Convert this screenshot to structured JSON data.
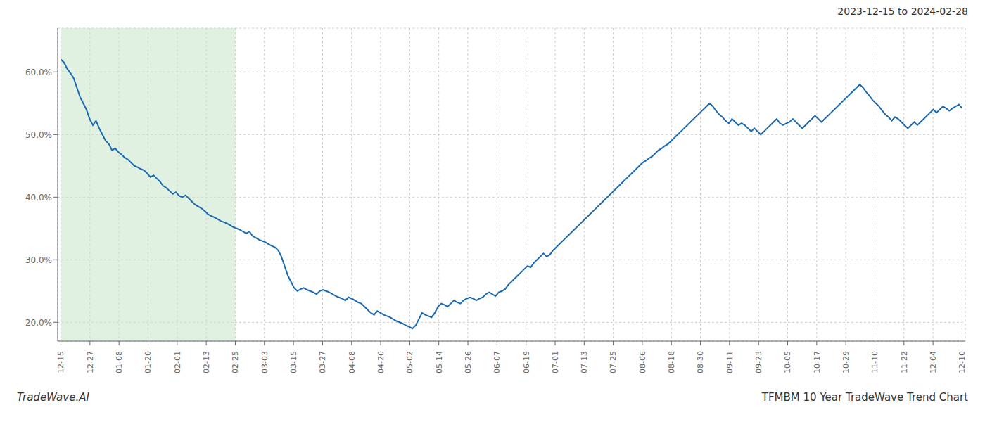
{
  "chart_data": {
    "type": "line",
    "title": "2023-12-15 to 2024-02-28",
    "annotations": [
      "TradeWave.AI",
      "TFMBM 10 Year TradeWave Trend Chart"
    ],
    "color": "#1b6ab0",
    "grid": true,
    "xlim": [
      -1,
      283
    ],
    "xticks": [
      {
        "value": 0,
        "label": "12-15"
      },
      {
        "value": 9.0967741935,
        "label": "12-27"
      },
      {
        "value": 18.1935483871,
        "label": "01-08"
      },
      {
        "value": 27.2903225806,
        "label": "01-20"
      },
      {
        "value": 36.3870967742,
        "label": "02-01"
      },
      {
        "value": 45.4838709677,
        "label": "02-13"
      },
      {
        "value": 54.5806451613,
        "label": "02-25"
      },
      {
        "value": 63.6774193548,
        "label": "03-03"
      },
      {
        "value": 72.7741935484,
        "label": "03-15"
      },
      {
        "value": 81.8709677419,
        "label": "03-27"
      },
      {
        "value": 90.9677419355,
        "label": "04-08"
      },
      {
        "value": 100.064516129,
        "label": "04-20"
      },
      {
        "value": 109.1612903226,
        "label": "05-02"
      },
      {
        "value": 118.2580645161,
        "label": "05-14"
      },
      {
        "value": 127.3548387097,
        "label": "05-26"
      },
      {
        "value": 136.4516129032,
        "label": "06-07"
      },
      {
        "value": 145.5483870968,
        "label": "06-19"
      },
      {
        "value": 154.6451612903,
        "label": "07-01"
      },
      {
        "value": 163.7419354839,
        "label": "07-13"
      },
      {
        "value": 172.8387096774,
        "label": "07-25"
      },
      {
        "value": 181.935483871,
        "label": "08-06"
      },
      {
        "value": 191.0322580645,
        "label": "08-18"
      },
      {
        "value": 200.1290322581,
        "label": "08-30"
      },
      {
        "value": 209.2258064516,
        "label": "09-11"
      },
      {
        "value": 218.3225806452,
        "label": "09-23"
      },
      {
        "value": 227.4193548387,
        "label": "10-05"
      },
      {
        "value": 236.5161290323,
        "label": "10-17"
      },
      {
        "value": 245.6129032258,
        "label": "10-29"
      },
      {
        "value": 254.7096774194,
        "label": "11-10"
      },
      {
        "value": 263.8064516129,
        "label": "11-22"
      },
      {
        "value": 272.9032258065,
        "label": "12-04"
      },
      {
        "value": 282,
        "label": "12-10"
      }
    ],
    "ylim": [
      17,
      67
    ],
    "yticks": [
      {
        "value": 20.0,
        "label": "20.0%"
      },
      {
        "value": 30.0,
        "label": "30.0%"
      },
      {
        "value": 40.0,
        "label": "40.0%"
      },
      {
        "value": 50.0,
        "label": "50.0%"
      },
      {
        "value": 60.0,
        "label": "60.0%"
      }
    ],
    "highlight": {
      "x": [
        0,
        54.5806451613
      ],
      "color": "#c8e6c9"
    },
    "x": [
      0,
      1,
      2,
      3,
      4,
      5,
      6,
      7,
      8,
      9,
      10,
      11,
      12,
      13,
      14,
      15,
      16,
      17,
      18,
      19,
      20,
      21,
      22,
      23,
      24,
      25,
      26,
      27,
      28,
      29,
      30,
      31,
      32,
      33,
      34,
      35,
      36,
      37,
      38,
      39,
      40,
      41,
      42,
      43,
      44,
      45,
      46,
      47,
      48,
      49,
      50,
      51,
      52,
      53,
      54,
      55,
      56,
      57,
      58,
      59,
      60,
      61,
      62,
      63,
      64,
      65,
      66,
      67,
      68,
      69,
      70,
      71,
      72,
      73,
      74,
      75,
      76,
      77,
      78,
      79,
      80,
      81,
      82,
      83,
      84,
      85,
      86,
      87,
      88,
      89,
      90,
      91,
      92,
      93,
      94,
      95,
      96,
      97,
      98,
      99,
      100,
      101,
      102,
      103,
      104,
      105,
      106,
      107,
      108,
      109,
      110,
      111,
      112,
      113,
      114,
      115,
      116,
      117,
      118,
      119,
      120,
      121,
      122,
      123,
      124,
      125,
      126,
      127,
      128,
      129,
      130,
      131,
      132,
      133,
      134,
      135,
      136,
      137,
      138,
      139,
      140,
      141,
      142,
      143,
      144,
      145,
      146,
      147,
      148,
      149,
      150,
      151,
      152,
      153,
      154,
      155,
      156,
      157,
      158,
      159,
      160,
      161,
      162,
      163,
      164,
      165,
      166,
      167,
      168,
      169,
      170,
      171,
      172,
      173,
      174,
      175,
      176,
      177,
      178,
      179,
      180,
      181,
      182,
      183,
      184,
      185,
      186,
      187,
      188,
      189,
      190,
      191,
      192,
      193,
      194,
      195,
      196,
      197,
      198,
      199,
      200,
      201,
      202,
      203,
      204,
      205,
      206,
      207,
      208,
      209,
      210,
      211,
      212,
      213,
      214,
      215,
      216,
      217,
      218,
      219,
      220,
      221,
      222,
      223,
      224,
      225,
      226,
      227,
      228,
      229,
      230,
      231,
      232,
      233,
      234,
      235,
      236,
      237,
      238,
      239,
      240,
      241,
      242,
      243,
      244,
      245,
      246,
      247,
      248,
      249,
      250,
      251,
      252,
      253,
      254,
      255,
      256,
      257,
      258,
      259,
      260,
      261,
      262,
      263,
      264,
      265,
      266,
      267,
      268,
      269,
      270,
      271,
      272,
      273,
      274,
      275,
      276,
      277,
      278,
      279,
      280,
      281,
      282
    ],
    "values": [
      62.0,
      61.5,
      60.5,
      59.8,
      59.0,
      57.5,
      56.0,
      55.0,
      54.0,
      52.5,
      51.5,
      52.2,
      51.0,
      50.0,
      49.0,
      48.5,
      47.5,
      47.8,
      47.2,
      46.8,
      46.3,
      46.0,
      45.5,
      45.0,
      44.8,
      44.5,
      44.3,
      43.8,
      43.2,
      43.5,
      43.0,
      42.5,
      41.8,
      41.5,
      41.0,
      40.5,
      40.8,
      40.2,
      40.0,
      40.3,
      39.8,
      39.3,
      38.8,
      38.5,
      38.2,
      37.8,
      37.3,
      37.0,
      36.8,
      36.5,
      36.2,
      36.0,
      35.8,
      35.5,
      35.2,
      35.0,
      34.8,
      34.5,
      34.2,
      34.5,
      33.8,
      33.5,
      33.2,
      33.0,
      32.8,
      32.5,
      32.2,
      32.0,
      31.5,
      30.5,
      29.0,
      27.5,
      26.5,
      25.5,
      25.0,
      25.3,
      25.5,
      25.2,
      25.0,
      24.8,
      24.5,
      25.0,
      25.2,
      25.0,
      24.8,
      24.5,
      24.2,
      24.0,
      23.8,
      23.5,
      24.0,
      23.8,
      23.5,
      23.2,
      23.0,
      22.5,
      22.0,
      21.5,
      21.2,
      21.8,
      21.5,
      21.2,
      21.0,
      20.8,
      20.5,
      20.2,
      20.0,
      19.8,
      19.5,
      19.3,
      19.0,
      19.5,
      20.5,
      21.5,
      21.2,
      21.0,
      20.8,
      21.5,
      22.5,
      23.0,
      22.8,
      22.5,
      23.0,
      23.5,
      23.2,
      23.0,
      23.5,
      23.8,
      24.0,
      23.8,
      23.5,
      23.8,
      24.0,
      24.5,
      24.8,
      24.5,
      24.2,
      24.8,
      25.0,
      25.3,
      26.0,
      26.5,
      27.0,
      27.5,
      28.0,
      28.5,
      29.0,
      28.8,
      29.5,
      30.0,
      30.5,
      31.0,
      30.5,
      30.8,
      31.5,
      32.0,
      32.5,
      33.0,
      33.5,
      34.0,
      34.5,
      35.0,
      35.5,
      36.0,
      36.5,
      37.0,
      37.5,
      38.0,
      38.5,
      39.0,
      39.5,
      40.0,
      40.5,
      41.0,
      41.5,
      42.0,
      42.5,
      43.0,
      43.5,
      44.0,
      44.5,
      45.0,
      45.5,
      45.8,
      46.2,
      46.5,
      47.0,
      47.5,
      47.8,
      48.2,
      48.5,
      49.0,
      49.5,
      50.0,
      50.5,
      51.0,
      51.5,
      52.0,
      52.5,
      53.0,
      53.5,
      54.0,
      54.5,
      55.0,
      54.5,
      53.8,
      53.2,
      52.8,
      52.2,
      51.8,
      52.5,
      52.0,
      51.5,
      51.8,
      51.5,
      51.0,
      50.5,
      51.0,
      50.5,
      50.0,
      50.5,
      51.0,
      51.5,
      52.0,
      52.5,
      51.8,
      51.5,
      51.8,
      52.0,
      52.5,
      52.0,
      51.5,
      51.0,
      51.5,
      52.0,
      52.5,
      53.0,
      52.5,
      52.0,
      52.5,
      53.0,
      53.5,
      54.0,
      54.5,
      55.0,
      55.5,
      56.0,
      56.5,
      57.0,
      57.5,
      58.0,
      57.5,
      56.8,
      56.2,
      55.5,
      55.0,
      54.5,
      53.8,
      53.2,
      52.8,
      52.2,
      52.8,
      52.5,
      52.0,
      51.5,
      51.0,
      51.5,
      52.0,
      51.5,
      52.0,
      52.5,
      53.0,
      53.5,
      54.0,
      53.5,
      54.0,
      54.5,
      54.2,
      53.8,
      54.2,
      54.5,
      54.8,
      54.2
    ]
  }
}
